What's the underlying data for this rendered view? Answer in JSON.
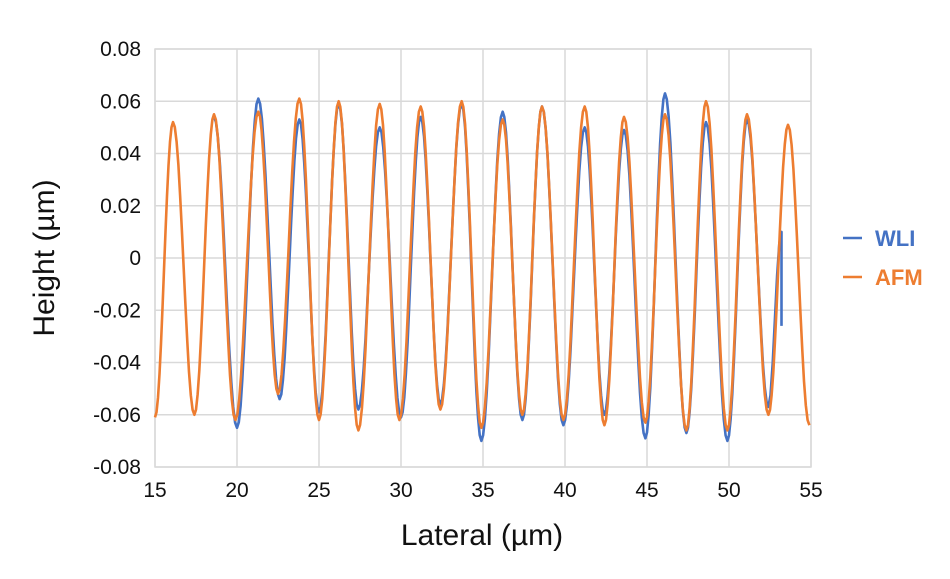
{
  "chart_data": {
    "type": "line",
    "title": "",
    "xlabel": "Lateral (µm)",
    "ylabel": "Height (µm)",
    "xlim": [
      15,
      55
    ],
    "ylim": [
      -0.08,
      0.08
    ],
    "x_ticks": [
      "15",
      "20",
      "25",
      "30",
      "35",
      "40",
      "45",
      "50",
      "55"
    ],
    "y_ticks": [
      "0.08",
      "0.06",
      "0.04",
      "0.02",
      "0",
      "-0.02",
      "-0.04",
      "-0.06",
      "-0.08"
    ],
    "grid": true,
    "legend_position": "right",
    "series": [
      {
        "name": "WLI",
        "color": "#4472C4",
        "x_range": [
          18.6,
          53.2
        ],
        "peaks": [
          [
            18.6,
            0.054
          ],
          [
            21.3,
            0.061
          ],
          [
            23.8,
            0.053
          ],
          [
            26.2,
            0.059
          ],
          [
            28.7,
            0.05
          ],
          [
            31.2,
            0.054
          ],
          [
            33.7,
            0.059
          ],
          [
            36.2,
            0.056
          ],
          [
            38.6,
            0.058
          ],
          [
            41.2,
            0.05
          ],
          [
            43.6,
            0.049
          ],
          [
            46.1,
            0.063
          ],
          [
            48.6,
            0.052
          ],
          [
            51.1,
            0.053
          ]
        ],
        "troughs": [
          [
            20.0,
            -0.065
          ],
          [
            22.6,
            -0.054
          ],
          [
            25.0,
            -0.059
          ],
          [
            27.4,
            -0.058
          ],
          [
            30.0,
            -0.061
          ],
          [
            32.4,
            -0.056
          ],
          [
            34.9,
            -0.07
          ],
          [
            37.4,
            -0.062
          ],
          [
            39.9,
            -0.064
          ],
          [
            42.4,
            -0.06
          ],
          [
            44.9,
            -0.069
          ],
          [
            47.4,
            -0.067
          ],
          [
            49.9,
            -0.07
          ],
          [
            52.4,
            -0.057
          ]
        ],
        "end_point": [
          53.2,
          -0.026
        ]
      },
      {
        "name": "AFM",
        "color": "#ED7D31",
        "x_range": [
          15.0,
          55.0
        ],
        "peaks": [
          [
            16.1,
            0.052
          ],
          [
            18.6,
            0.055
          ],
          [
            21.3,
            0.056
          ],
          [
            23.8,
            0.061
          ],
          [
            26.2,
            0.06
          ],
          [
            28.7,
            0.059
          ],
          [
            31.2,
            0.058
          ],
          [
            33.7,
            0.06
          ],
          [
            36.2,
            0.053
          ],
          [
            38.6,
            0.058
          ],
          [
            41.2,
            0.058
          ],
          [
            43.6,
            0.054
          ],
          [
            46.1,
            0.055
          ],
          [
            48.6,
            0.06
          ],
          [
            51.1,
            0.055
          ],
          [
            53.6,
            0.051
          ]
        ],
        "troughs": [
          [
            15.0,
            -0.061
          ],
          [
            17.4,
            -0.06
          ],
          [
            19.9,
            -0.062
          ],
          [
            22.5,
            -0.052
          ],
          [
            25.0,
            -0.062
          ],
          [
            27.4,
            -0.066
          ],
          [
            29.9,
            -0.062
          ],
          [
            32.4,
            -0.058
          ],
          [
            34.9,
            -0.065
          ],
          [
            37.4,
            -0.06
          ],
          [
            39.9,
            -0.062
          ],
          [
            42.4,
            -0.064
          ],
          [
            44.9,
            -0.063
          ],
          [
            47.4,
            -0.066
          ],
          [
            49.9,
            -0.066
          ],
          [
            52.4,
            -0.06
          ],
          [
            54.9,
            -0.064
          ]
        ]
      }
    ]
  },
  "legend": {
    "items": [
      {
        "label": "WLI",
        "color": "#4472C4"
      },
      {
        "label": "AFM",
        "color": "#ED7D31"
      }
    ]
  },
  "colors": {
    "grid": "#D9D9D9",
    "axis_text": "#111111"
  }
}
